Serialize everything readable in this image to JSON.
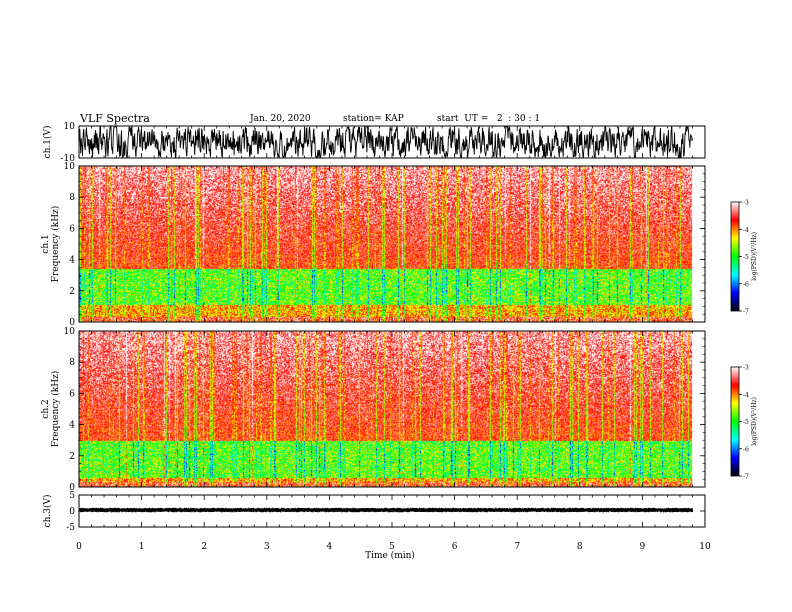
{
  "header": {
    "title": "VLF Spectra",
    "date": "Jan. 20, 2020",
    "station": "station= KAP",
    "start": "start  UT =   2  : 30 : 1"
  },
  "chart_data": [
    {
      "type": "line",
      "panel": "waveform-ch1",
      "ylabel": "ch.1(V)",
      "ylim": [
        -10,
        10
      ],
      "yticks": [
        "10",
        "-10"
      ],
      "xlim": [
        0,
        10
      ],
      "data_extent_min": 9.8,
      "color": "#000000"
    },
    {
      "type": "heatmap",
      "panel": "spectrogram-ch1",
      "ylabel": "Frequency  (kHz)",
      "channel_label": "ch.1",
      "ylim": [
        0,
        10
      ],
      "yticks": [
        "0",
        "2",
        "4",
        "6",
        "8",
        "10"
      ],
      "xlim": [
        0,
        10
      ],
      "data_extent_min": 9.8,
      "intense_band_khz": [
        1.1,
        3.4
      ],
      "colorbar": {
        "label": "log(PSD)(V²/Hz)",
        "ticks": [
          "-3",
          "-4",
          "-5",
          "-6",
          "-7"
        ],
        "range": [
          -7,
          -3
        ],
        "colors": [
          "#ffffff",
          "#ff0000",
          "#ffff00",
          "#00ff00",
          "#00ffff",
          "#0000ff",
          "#000000"
        ]
      }
    },
    {
      "type": "heatmap",
      "panel": "spectrogram-ch2",
      "ylabel": "Frequency  (kHz)",
      "channel_label": "ch.2",
      "ylim": [
        0,
        10
      ],
      "yticks": [
        "0",
        "2",
        "4",
        "6",
        "8",
        "10"
      ],
      "xlim": [
        0,
        10
      ],
      "data_extent_min": 9.8,
      "intense_band_khz": [
        0.6,
        3.0
      ],
      "colorbar": {
        "label": "log(PSD)(V²/Hz)",
        "ticks": [
          "-3",
          "-4",
          "-5",
          "-6",
          "-7"
        ],
        "range": [
          -7,
          -3
        ],
        "colors": [
          "#ffffff",
          "#ff0000",
          "#ffff00",
          "#00ff00",
          "#00ffff",
          "#0000ff",
          "#000000"
        ]
      }
    },
    {
      "type": "line",
      "panel": "waveform-ch3",
      "ylabel": "ch.3(V)",
      "ylim": [
        -5,
        5
      ],
      "yticks": [
        "5",
        "0",
        "-5"
      ],
      "xlim": [
        0,
        10
      ],
      "data_extent_min": 9.8,
      "approx_level": 0.3,
      "xlabel": "Time  (min)",
      "xticks": [
        "0",
        "1",
        "2",
        "3",
        "4",
        "5",
        "6",
        "7",
        "8",
        "9",
        "10"
      ],
      "color": "#000000"
    }
  ]
}
